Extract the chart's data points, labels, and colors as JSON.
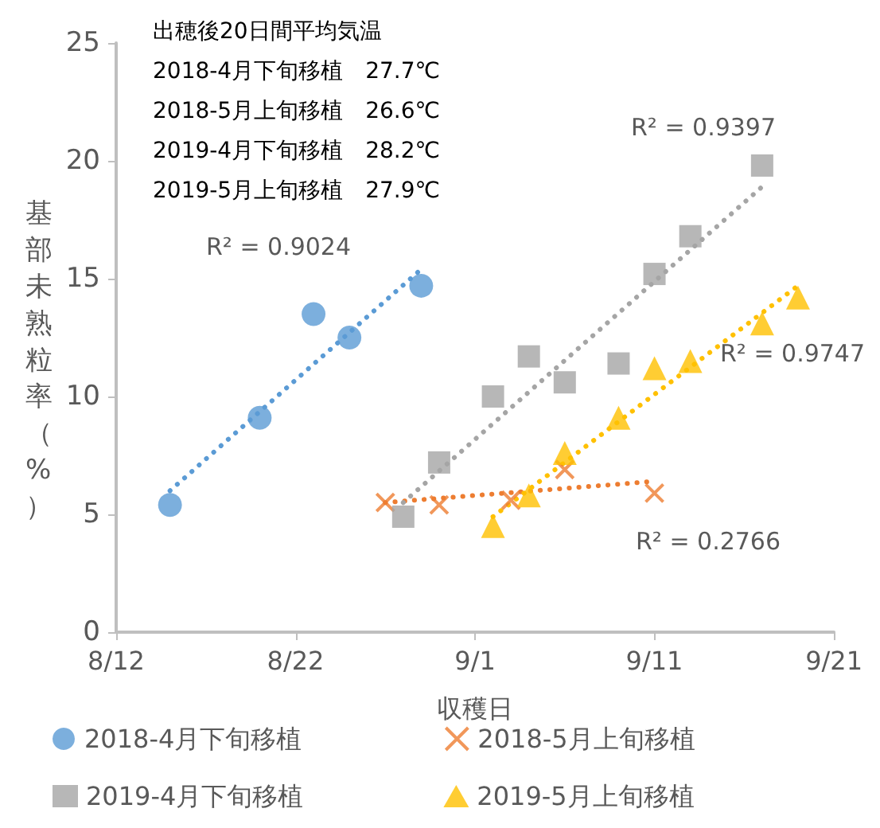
{
  "chart_data": {
    "type": "scatter",
    "title": "出穂後20日間平均気温",
    "xlabel": "収穫日",
    "ylabel": "基部未熟粒率（%）",
    "annotations": [
      "2018-4月下旬移植　27.7℃",
      "2018-5月上旬移植　26.6℃",
      "2019-4月下旬移植　28.2℃",
      "2019-5月上旬移植　27.9℃",
      "R² = 0.9024",
      "R² = 0.9397",
      "R² = 0.9747",
      "R² = 0.2766"
    ],
    "xlim": [
      "--08-12",
      "--09-21"
    ],
    "xticks": [
      {
        "value": "--08-12",
        "label": "8/12"
      },
      {
        "value": "--08-22",
        "label": "8/22"
      },
      {
        "value": "--09-01",
        "label": "9/1"
      },
      {
        "value": "--09-11",
        "label": "9/11"
      },
      {
        "value": "--09-21",
        "label": "9/21"
      }
    ],
    "ylim": [
      0,
      25
    ],
    "yticks": [
      0,
      5,
      10,
      15,
      20,
      25
    ],
    "grid": false,
    "legend": "bottom",
    "series": [
      {
        "name": "2018-4月下旬移植",
        "color": "#5b9bd5",
        "marker": "circle",
        "x": [
          "--08-15",
          "--08-20",
          "--08-23",
          "--08-25",
          "--08-29"
        ],
        "values": [
          5.4,
          9.1,
          13.5,
          12.5,
          14.7
        ]
      },
      {
        "name": "2018-5月上旬移植",
        "color": "#ed7d31",
        "marker": "cross",
        "x": [
          "--08-27",
          "--08-30",
          "--09-03",
          "--09-06",
          "--09-11"
        ],
        "values": [
          5.5,
          5.4,
          5.6,
          6.9,
          5.9
        ]
      },
      {
        "name": "2019-4月下旬移植",
        "color": "#a5a5a5",
        "marker": "square",
        "x": [
          "--08-28",
          "--08-30",
          "--09-02",
          "--09-04",
          "--09-06",
          "--09-09",
          "--09-11",
          "--09-13",
          "--09-17"
        ],
        "values": [
          4.9,
          7.2,
          10.0,
          11.7,
          10.6,
          11.4,
          15.2,
          16.8,
          19.8
        ]
      },
      {
        "name": "2019-5月上旬移植",
        "color": "#ffc000",
        "marker": "triangle",
        "x": [
          "--09-02",
          "--09-04",
          "--09-06",
          "--09-09",
          "--09-11",
          "--09-13",
          "--09-17",
          "--09-19"
        ],
        "values": [
          4.5,
          5.8,
          7.6,
          9.1,
          11.2,
          11.5,
          13.1,
          14.2
        ]
      },
      {
        "type": "line",
        "color": "#5b9bd5",
        "line_style": "dotted",
        "marker": "none",
        "x": [
          "--08-15",
          "--08-29"
        ],
        "values": [
          6.0,
          15.4
        ]
      },
      {
        "type": "line",
        "color": "#ed7d31",
        "line_style": "dotted",
        "marker": "none",
        "x": [
          "--08-27",
          "--09-11"
        ],
        "values": [
          5.5,
          6.4
        ]
      },
      {
        "type": "line",
        "color": "#a5a5a5",
        "line_style": "dotted",
        "marker": "none",
        "x": [
          "--08-28",
          "--09-17"
        ],
        "values": [
          5.5,
          18.9
        ]
      },
      {
        "type": "line",
        "color": "#ffc000",
        "line_style": "dotted",
        "marker": "none",
        "x": [
          "--09-02",
          "--09-19"
        ],
        "values": [
          4.9,
          14.7
        ]
      }
    ]
  }
}
